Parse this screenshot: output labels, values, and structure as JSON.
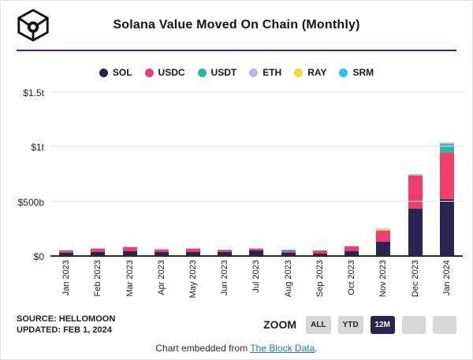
{
  "header": {
    "title": "Solana Value Moved On Chain (Monthly)",
    "logo_name": "the-block-cube-logo"
  },
  "colors": {
    "divider_purple": "#5a1090",
    "axis": "#2b2b2b",
    "gridline": "#e7e7e7",
    "button_gray": "#d7d7d7",
    "button_active_bg": "#2b2350",
    "link_blue": "#1b7eb4"
  },
  "chart_data": {
    "type": "bar",
    "stacked": true,
    "title": "Solana Value Moved On Chain (Monthly)",
    "unit": "billions USD",
    "grid": true,
    "legend_position": "top",
    "ylim": [
      0,
      1500
    ],
    "y_ticks": [
      {
        "label": "$1.5t",
        "value": 1500
      },
      {
        "label": "$1t",
        "value": 1000
      },
      {
        "label": "$500b",
        "value": 500
      },
      {
        "label": "$0",
        "value": 0
      }
    ],
    "categories": [
      "Jan 2023",
      "Feb 2023",
      "Mar 2023",
      "Apr 2023",
      "May 2023",
      "Jun 2023",
      "Jul 2023",
      "Aug 2023",
      "Sep 2023",
      "Oct 2023",
      "Nov 2023",
      "Dec 2023",
      "Jan 2024"
    ],
    "series": [
      {
        "name": "SOL",
        "color": "#2b2350",
        "values": [
          20,
          28,
          38,
          26,
          30,
          27,
          41,
          22,
          15,
          38,
          125,
          425,
          510
        ]
      },
      {
        "name": "USDC",
        "color": "#ee3f6c",
        "values": [
          15,
          32,
          36,
          28,
          30,
          15,
          14,
          12,
          26,
          45,
          100,
          300,
          425
        ]
      },
      {
        "name": "USDT",
        "color": "#2cb7a5",
        "values": [
          2,
          0,
          0,
          0,
          0,
          4,
          0,
          3,
          0,
          0,
          0,
          0,
          80
        ]
      },
      {
        "name": "ETH",
        "color": "#bcb6e8",
        "values": [
          10,
          3,
          3,
          4,
          3,
          0,
          5,
          0,
          0,
          2,
          5,
          15,
          20
        ]
      },
      {
        "name": "RAY",
        "color": "#f7d63d",
        "values": [
          0,
          0,
          0,
          0,
          0,
          0,
          0,
          0,
          0,
          0,
          10,
          0,
          0
        ]
      },
      {
        "name": "SRM",
        "color": "#27c4ea",
        "values": [
          0,
          0,
          0,
          0,
          0,
          0,
          0,
          4,
          0,
          0,
          0,
          0,
          0
        ]
      }
    ]
  },
  "footer": {
    "source_line1": "SOURCE: HELLOMOON",
    "source_line2": "UPDATED: FEB 1, 2024",
    "zoom_label": "ZOOM",
    "zoom_buttons": [
      {
        "label": "ALL",
        "active": false
      },
      {
        "label": "YTD",
        "active": false
      },
      {
        "label": "12M",
        "active": true
      },
      {
        "label": "",
        "active": false
      },
      {
        "label": "",
        "active": false
      }
    ],
    "embed_prefix": "Chart embedded from ",
    "embed_link": "The Block Data",
    "embed_suffix": "."
  }
}
